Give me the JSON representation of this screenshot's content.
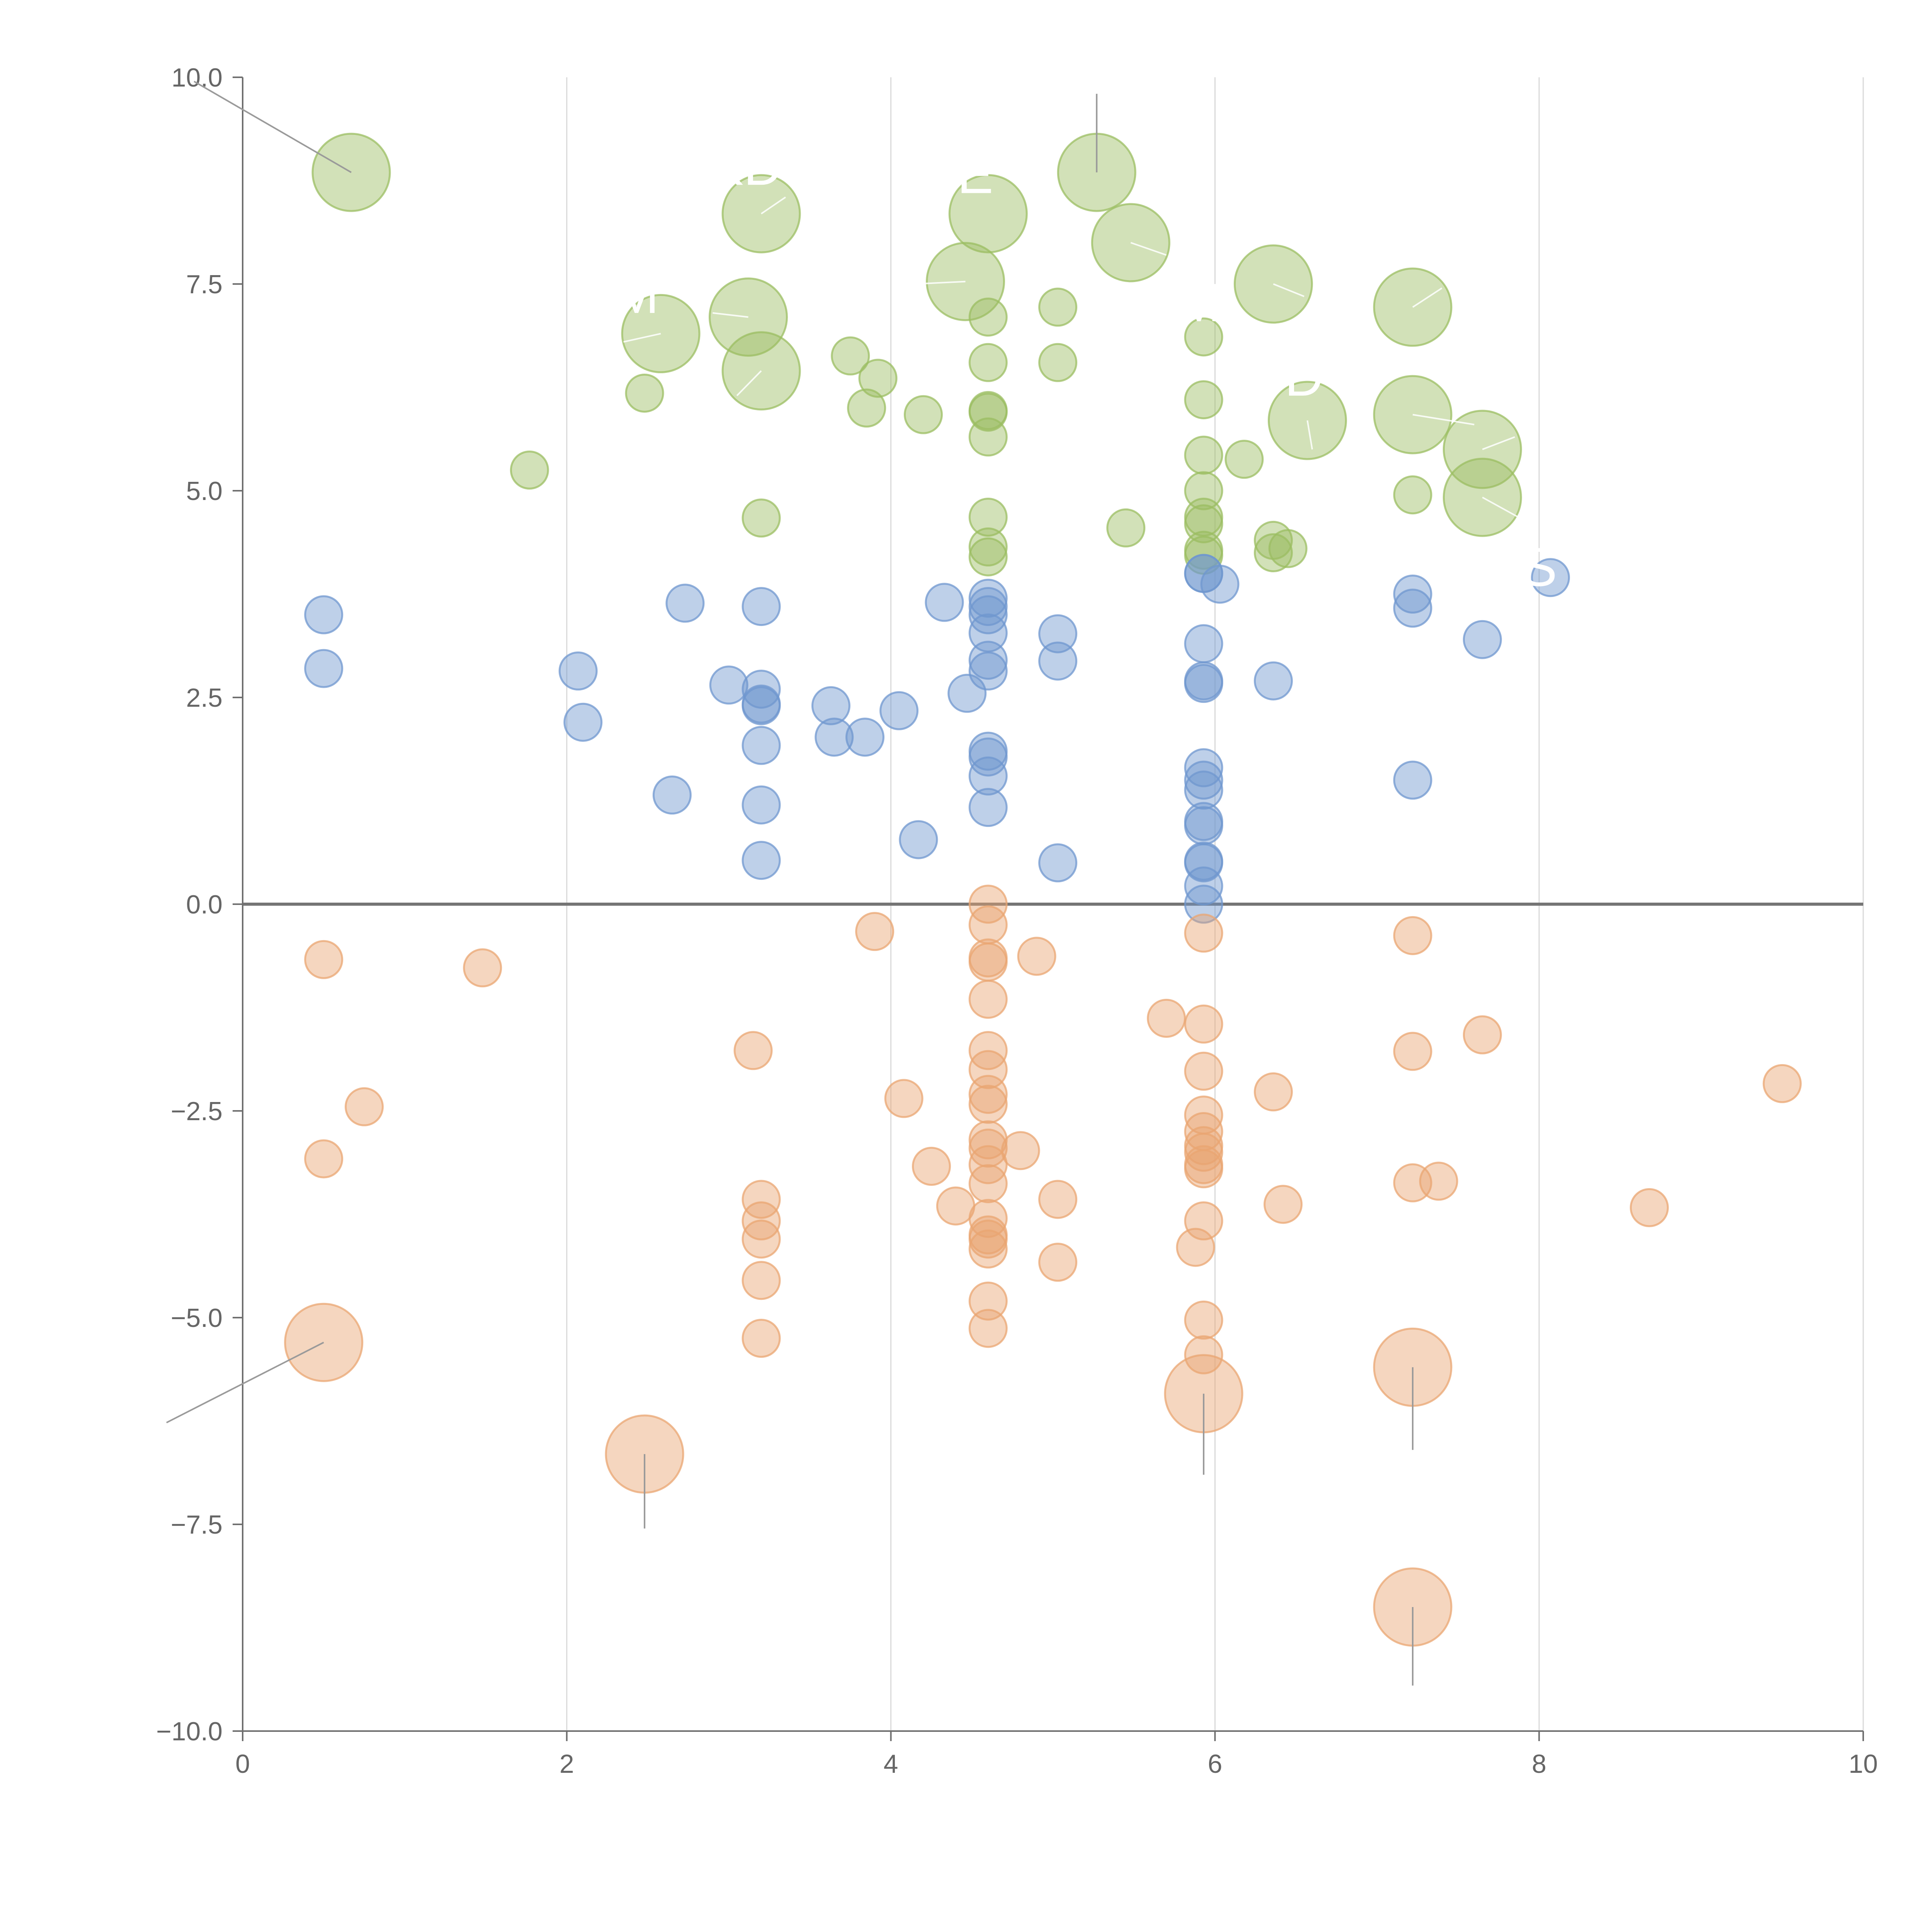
{
  "chart_data": {
    "type": "scatter",
    "title": "",
    "xlabel": "",
    "ylabel": "",
    "xlim": [
      0,
      10
    ],
    "ylim": [
      -10,
      10
    ],
    "grid": "vertical",
    "legend": "none",
    "x_ticks": [
      0,
      2,
      4,
      6,
      8,
      10
    ],
    "x_tick_labels": [
      "0",
      "2",
      "4",
      "6",
      "8",
      "10"
    ],
    "y_ticks": [
      -10,
      -7.5,
      -5,
      -2.5,
      0,
      2.5,
      5,
      7.5,
      10
    ],
    "y_tick_labels": [
      "−10.0",
      "−7.5",
      "−5.0",
      "−2.5",
      "0.0",
      "2.5",
      "5.0",
      "7.5",
      "10.0"
    ],
    "overflow_labels": [
      "KD",
      "RE",
      "OM",
      "M",
      "D",
      "Y",
      "S"
    ],
    "series": [
      {
        "name": "upper",
        "color": "#9bbd62",
        "points": [
          [
            0.67,
            8.85,
            2
          ],
          [
            3.2,
            8.35,
            2
          ],
          [
            4.6,
            8.35,
            2
          ],
          [
            5.27,
            8.85,
            2
          ],
          [
            5.48,
            8.0,
            2
          ],
          [
            6.36,
            7.5,
            2
          ],
          [
            7.22,
            7.22,
            2
          ],
          [
            4.46,
            7.53,
            2
          ],
          [
            3.12,
            7.1,
            2
          ],
          [
            2.58,
            6.9,
            2
          ],
          [
            3.2,
            6.45,
            2
          ],
          [
            6.57,
            5.85,
            2
          ],
          [
            7.22,
            5.92,
            2
          ],
          [
            7.65,
            5.5,
            2
          ],
          [
            7.65,
            4.92,
            2
          ],
          [
            5.03,
            7.22,
            1
          ],
          [
            4.6,
            7.1,
            1
          ],
          [
            3.75,
            6.63,
            1
          ],
          [
            3.92,
            6.36,
            1
          ],
          [
            4.6,
            6.55,
            1
          ],
          [
            5.03,
            6.55,
            1
          ],
          [
            5.93,
            6.86,
            1
          ],
          [
            2.48,
            6.18,
            1
          ],
          [
            3.85,
            6.0,
            1
          ],
          [
            4.2,
            5.92,
            1
          ],
          [
            4.6,
            5.97,
            1
          ],
          [
            4.6,
            5.95,
            1
          ],
          [
            4.6,
            5.65,
            1
          ],
          [
            5.93,
            6.1,
            1
          ],
          [
            1.77,
            5.25,
            1
          ],
          [
            5.93,
            5.43,
            1
          ],
          [
            6.18,
            5.38,
            1
          ],
          [
            5.93,
            5.0,
            1
          ],
          [
            7.22,
            4.95,
            1
          ],
          [
            3.2,
            4.67,
            1
          ],
          [
            4.6,
            4.68,
            1
          ],
          [
            5.45,
            4.55,
            1
          ],
          [
            5.93,
            4.68,
            1
          ],
          [
            5.93,
            4.6,
            1
          ],
          [
            4.6,
            4.32,
            1
          ],
          [
            4.6,
            4.2,
            1
          ],
          [
            5.93,
            4.28,
            1
          ],
          [
            5.93,
            4.22,
            1
          ],
          [
            6.36,
            4.4,
            1
          ],
          [
            6.45,
            4.3,
            1
          ],
          [
            6.36,
            4.25,
            1
          ]
        ]
      },
      {
        "name": "middle",
        "color": "#6f97cf",
        "points": [
          [
            0.5,
            3.5,
            1
          ],
          [
            0.5,
            2.85,
            1
          ],
          [
            2.07,
            2.82,
            1
          ],
          [
            2.1,
            2.2,
            1
          ],
          [
            2.73,
            3.64,
            1
          ],
          [
            2.65,
            1.32,
            1
          ],
          [
            3.0,
            2.65,
            1
          ],
          [
            3.2,
            3.6,
            1
          ],
          [
            3.2,
            2.6,
            1
          ],
          [
            3.2,
            2.42,
            1
          ],
          [
            3.2,
            2.4,
            1
          ],
          [
            3.2,
            1.92,
            1
          ],
          [
            3.2,
            1.2,
            1
          ],
          [
            3.2,
            0.53,
            1
          ],
          [
            3.63,
            2.4,
            1
          ],
          [
            3.65,
            2.02,
            1
          ],
          [
            3.84,
            2.02,
            1
          ],
          [
            4.05,
            2.34,
            1
          ],
          [
            4.17,
            0.78,
            1
          ],
          [
            4.33,
            3.65,
            1
          ],
          [
            4.47,
            2.55,
            1
          ],
          [
            4.6,
            3.7,
            1
          ],
          [
            4.6,
            3.6,
            1
          ],
          [
            4.6,
            3.5,
            1
          ],
          [
            4.6,
            3.28,
            1
          ],
          [
            4.6,
            2.95,
            1
          ],
          [
            4.6,
            2.82,
            1
          ],
          [
            4.6,
            1.85,
            1
          ],
          [
            4.6,
            1.78,
            1
          ],
          [
            4.6,
            1.55,
            1
          ],
          [
            4.6,
            1.17,
            1
          ],
          [
            5.03,
            3.27,
            1
          ],
          [
            5.03,
            2.94,
            1
          ],
          [
            5.03,
            0.5,
            1
          ],
          [
            5.93,
            4.0,
            1
          ],
          [
            5.93,
            4.0,
            1
          ],
          [
            6.03,
            3.87,
            1
          ],
          [
            5.93,
            3.15,
            1
          ],
          [
            5.93,
            2.7,
            1
          ],
          [
            5.93,
            2.67,
            1
          ],
          [
            5.93,
            1.65,
            1
          ],
          [
            5.93,
            1.5,
            1
          ],
          [
            5.93,
            1.38,
            1
          ],
          [
            5.93,
            1.0,
            1
          ],
          [
            5.93,
            0.95,
            1
          ],
          [
            5.93,
            0.52,
            1
          ],
          [
            5.93,
            0.5,
            1
          ],
          [
            5.93,
            0.22,
            1
          ],
          [
            5.93,
            0.0,
            1
          ],
          [
            6.36,
            2.7,
            1
          ],
          [
            7.22,
            3.75,
            1
          ],
          [
            7.22,
            3.58,
            1
          ],
          [
            7.22,
            1.5,
            1
          ],
          [
            7.65,
            3.2,
            1
          ],
          [
            8.07,
            3.95,
            1
          ]
        ]
      },
      {
        "name": "lower",
        "color": "#e9a572",
        "points": [
          [
            0.5,
            -5.3,
            2
          ],
          [
            2.48,
            -6.65,
            2
          ],
          [
            5.93,
            -5.92,
            2
          ],
          [
            7.22,
            -5.6,
            2
          ],
          [
            7.22,
            -8.5,
            2
          ],
          [
            0.5,
            -0.67,
            1
          ],
          [
            1.48,
            -0.77,
            1
          ],
          [
            0.75,
            -2.45,
            1
          ],
          [
            0.5,
            -3.08,
            1
          ],
          [
            3.15,
            -1.77,
            1
          ],
          [
            3.2,
            -3.57,
            1
          ],
          [
            3.2,
            -3.83,
            1
          ],
          [
            3.2,
            -4.05,
            1
          ],
          [
            3.2,
            -4.55,
            1
          ],
          [
            3.2,
            -5.25,
            1
          ],
          [
            3.9,
            -0.33,
            1
          ],
          [
            4.08,
            -2.35,
            1
          ],
          [
            4.25,
            -3.17,
            1
          ],
          [
            4.4,
            -3.65,
            1
          ],
          [
            4.6,
            0.0,
            1
          ],
          [
            4.6,
            -0.25,
            1
          ],
          [
            4.6,
            -0.65,
            1
          ],
          [
            4.6,
            -0.7,
            1
          ],
          [
            4.6,
            -1.15,
            1
          ],
          [
            4.6,
            -1.77,
            1
          ],
          [
            4.6,
            -2.0,
            1
          ],
          [
            4.6,
            -2.3,
            1
          ],
          [
            4.6,
            -2.42,
            1
          ],
          [
            4.6,
            -2.85,
            1
          ],
          [
            4.6,
            -2.95,
            1
          ],
          [
            4.6,
            -3.15,
            1
          ],
          [
            4.6,
            -3.38,
            1
          ],
          [
            4.6,
            -3.8,
            1
          ],
          [
            4.6,
            -4.0,
            1
          ],
          [
            4.6,
            -4.05,
            1
          ],
          [
            4.6,
            -4.17,
            1
          ],
          [
            4.6,
            -4.8,
            1
          ],
          [
            4.6,
            -5.13,
            1
          ],
          [
            4.8,
            -2.98,
            1
          ],
          [
            4.9,
            -0.63,
            1
          ],
          [
            5.03,
            -3.57,
            1
          ],
          [
            5.03,
            -4.33,
            1
          ],
          [
            5.7,
            -1.38,
            1
          ],
          [
            5.93,
            -0.35,
            1
          ],
          [
            5.93,
            -1.45,
            1
          ],
          [
            5.93,
            -2.02,
            1
          ],
          [
            5.93,
            -2.55,
            1
          ],
          [
            5.93,
            -2.75,
            1
          ],
          [
            5.93,
            -2.92,
            1
          ],
          [
            5.93,
            -3.0,
            1
          ],
          [
            5.93,
            -3.15,
            1
          ],
          [
            5.93,
            -3.2,
            1
          ],
          [
            5.93,
            -3.83,
            1
          ],
          [
            5.88,
            -4.15,
            1
          ],
          [
            5.93,
            -5.03,
            1
          ],
          [
            5.93,
            -5.45,
            1
          ],
          [
            6.36,
            -2.27,
            1
          ],
          [
            6.42,
            -3.63,
            1
          ],
          [
            7.22,
            -0.38,
            1
          ],
          [
            7.22,
            -1.78,
            1
          ],
          [
            7.22,
            -3.37,
            1
          ],
          [
            7.38,
            -3.35,
            1
          ],
          [
            7.65,
            -1.58,
            1
          ],
          [
            8.68,
            -3.67,
            1
          ],
          [
            9.5,
            -2.17,
            1
          ]
        ]
      }
    ]
  }
}
